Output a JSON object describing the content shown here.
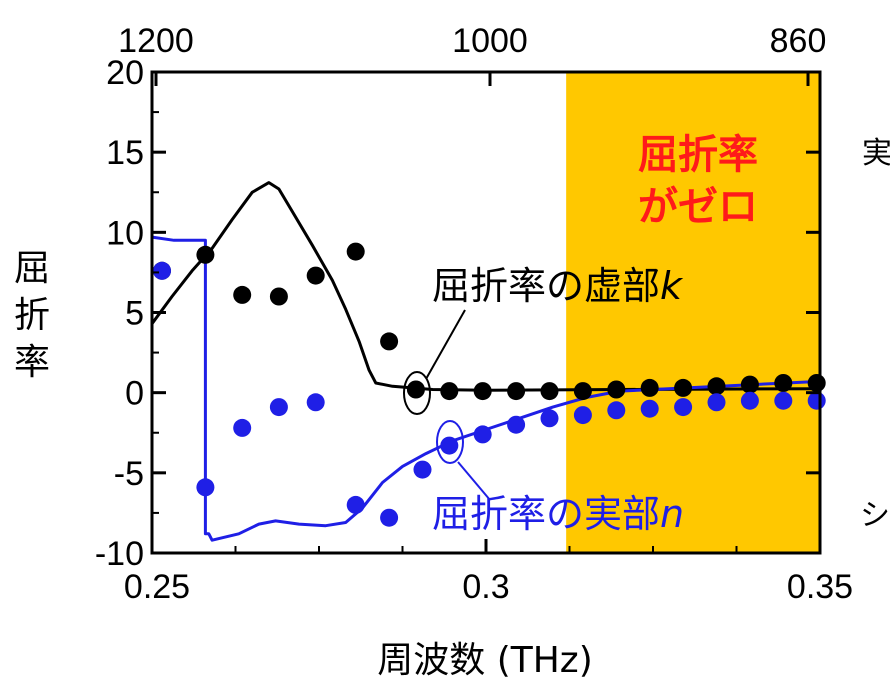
{
  "chart_data": {
    "type": "line",
    "xlabel": "周波数 (THz)",
    "ylabel": "屈折率",
    "xlim": [
      0.25,
      0.35
    ],
    "ylim": [
      -10,
      20
    ],
    "x_ticks": [
      "0.25",
      "0.3",
      "0.35"
    ],
    "y_ticks": [
      "20",
      "15",
      "10",
      "5",
      "0",
      "-5",
      "-10"
    ],
    "top_axis_ticks": [
      "1200",
      "1000",
      "860"
    ],
    "zero_index_region": {
      "x_start": 0.312,
      "x_end": 0.35,
      "color": "#FFC800",
      "label_line1": "屈折率",
      "label_line2": "がゼロ"
    },
    "colors": {
      "k": "#000000",
      "n": "#1f1fe6",
      "label": "#ff1a1a"
    },
    "series": [
      {
        "name": "屈折率の虚部k",
        "label_main": "屈折率の虚部",
        "label_var": "k",
        "color": "#000000",
        "line": [
          [
            0.25,
            4.3
          ],
          [
            0.253,
            6.0
          ],
          [
            0.256,
            7.6
          ],
          [
            0.259,
            9.0
          ],
          [
            0.262,
            10.8
          ],
          [
            0.265,
            12.5
          ],
          [
            0.2675,
            13.1
          ],
          [
            0.269,
            12.7
          ],
          [
            0.271,
            11.3
          ],
          [
            0.274,
            9.2
          ],
          [
            0.277,
            7.0
          ],
          [
            0.279,
            5.2
          ],
          [
            0.281,
            3.2
          ],
          [
            0.2825,
            1.4
          ],
          [
            0.2835,
            0.6
          ],
          [
            0.286,
            0.4
          ],
          [
            0.289,
            0.3
          ],
          [
            0.292,
            0.2
          ],
          [
            0.3,
            0.15
          ],
          [
            0.32,
            0.2
          ],
          [
            0.35,
            0.25
          ]
        ],
        "points": [
          [
            0.2515,
            7.6
          ],
          [
            0.258,
            8.6
          ],
          [
            0.2635,
            6.1
          ],
          [
            0.269,
            6.0
          ],
          [
            0.2745,
            7.3
          ],
          [
            0.2805,
            8.8
          ],
          [
            0.2855,
            3.2
          ],
          [
            0.2895,
            0.2
          ],
          [
            0.2945,
            0.1
          ],
          [
            0.2995,
            0.1
          ],
          [
            0.3045,
            0.1
          ],
          [
            0.3095,
            0.1
          ],
          [
            0.3145,
            0.1
          ],
          [
            0.3195,
            0.2
          ],
          [
            0.3245,
            0.3
          ],
          [
            0.3295,
            0.3
          ],
          [
            0.3345,
            0.4
          ],
          [
            0.3395,
            0.5
          ],
          [
            0.3445,
            0.6
          ],
          [
            0.3495,
            0.6
          ]
        ]
      },
      {
        "name": "屈折率の実部n",
        "label_main": "屈折率の実部",
        "label_var": "n",
        "color": "#1f1fe6",
        "line": [
          [
            0.25,
            9.7
          ],
          [
            0.2533,
            9.5
          ],
          [
            0.2555,
            9.5
          ],
          [
            0.258,
            9.5
          ],
          [
            0.258,
            -8.8
          ],
          [
            0.2585,
            -8.8
          ],
          [
            0.259,
            -9.2
          ],
          [
            0.263,
            -8.8
          ],
          [
            0.266,
            -8.2
          ],
          [
            0.2685,
            -8.0
          ],
          [
            0.272,
            -8.2
          ],
          [
            0.276,
            -8.3
          ],
          [
            0.279,
            -8.1
          ],
          [
            0.2815,
            -7.2
          ],
          [
            0.2845,
            -5.6
          ],
          [
            0.2875,
            -4.6
          ],
          [
            0.291,
            -3.8
          ],
          [
            0.295,
            -3.0
          ],
          [
            0.3,
            -2.3
          ],
          [
            0.305,
            -1.6
          ],
          [
            0.31,
            -0.9
          ],
          [
            0.315,
            -0.3
          ],
          [
            0.32,
            0.1
          ],
          [
            0.33,
            0.3
          ],
          [
            0.34,
            0.5
          ],
          [
            0.35,
            0.7
          ]
        ],
        "points": [
          [
            0.2515,
            7.6
          ],
          [
            0.258,
            -5.9
          ],
          [
            0.2635,
            -2.2
          ],
          [
            0.269,
            -0.9
          ],
          [
            0.2745,
            -0.6
          ],
          [
            0.2805,
            -7.0
          ],
          [
            0.2855,
            -7.8
          ],
          [
            0.2905,
            -4.8
          ],
          [
            0.2945,
            -3.3
          ],
          [
            0.2995,
            -2.6
          ],
          [
            0.3045,
            -2.0
          ],
          [
            0.3095,
            -1.6
          ],
          [
            0.3145,
            -1.4
          ],
          [
            0.3195,
            -1.1
          ],
          [
            0.3245,
            -1.0
          ],
          [
            0.3295,
            -0.9
          ],
          [
            0.3345,
            -0.6
          ],
          [
            0.3395,
            -0.5
          ],
          [
            0.3445,
            -0.5
          ],
          [
            0.3495,
            -0.5
          ]
        ]
      }
    ],
    "right_cut_text": [
      "実",
      "シ"
    ]
  }
}
